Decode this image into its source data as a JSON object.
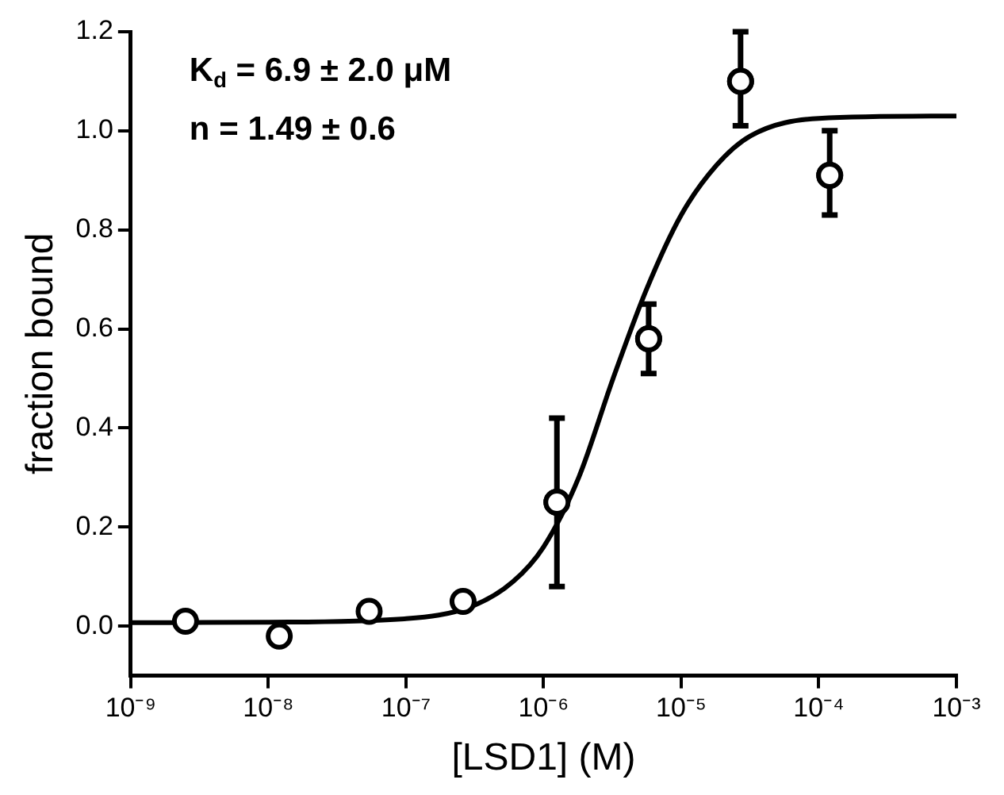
{
  "chart_data": {
    "type": "scatter",
    "xlabel": "[LSD1] (M)",
    "ylabel": "fraction bound",
    "log": "x",
    "grid": false,
    "legend": false,
    "annotations": [
      "K$_{d}$ = 6.9 ± 2.0 μM",
      "n = 1.49 ± 0.6"
    ],
    "xlim": [
      1e-09,
      0.001
    ],
    "xticks": [
      {
        "value": 1e-09,
        "label": "10⁻⁹"
      },
      {
        "value": 1e-08,
        "label": "10⁻⁸"
      },
      {
        "value": 1e-07,
        "label": "10⁻⁷"
      },
      {
        "value": 1e-06,
        "label": "10⁻⁶"
      },
      {
        "value": 1e-05,
        "label": "10⁻⁵"
      },
      {
        "value": 0.0001,
        "label": "10⁻⁴"
      },
      {
        "value": 0.001,
        "label": "10⁻³"
      }
    ],
    "ylim": [
      -0.1,
      1.2
    ],
    "yticks": [
      {
        "value": 0,
        "label": "0.0"
      },
      {
        "value": 0.2,
        "label": "0.2"
      },
      {
        "value": 0.4,
        "label": "0.4"
      },
      {
        "value": 0.6,
        "label": "0.6"
      },
      {
        "value": 0.8,
        "label": "0.8"
      },
      {
        "value": 1,
        "label": "1.0"
      },
      {
        "value": 1.2,
        "label": "1.2"
      }
    ],
    "series": [
      {
        "marker": "circle",
        "color": "#000000",
        "x": [
          2.5e-09,
          1.2e-08,
          5.4e-08,
          2.6e-07,
          1.25e-06,
          5.8e-06,
          2.7e-05,
          0.00012
        ],
        "values": [
          0.01,
          -0.02,
          0.03,
          0.05,
          0.25,
          0.58,
          1.1,
          0.91
        ],
        "errors": [
          null,
          null,
          null,
          null,
          [
            0.08,
            0.42
          ],
          [
            0.51,
            0.65
          ],
          [
            1.01,
            1.2
          ],
          [
            0.83,
            1.0
          ]
        ]
      },
      {
        "type": "line",
        "marker": "none",
        "color": "#000000",
        "x": [
          1e-09,
          1e-08,
          1e-07,
          3e-07,
          6e-07,
          1e-06,
          1.8e-06,
          3.2e-06,
          5.6e-06,
          1e-05,
          1.8e-05,
          3.2e-05,
          0.0001,
          0.001
        ],
        "values": [
          0.007,
          0.008,
          0.015,
          0.04,
          0.09,
          0.16,
          0.3,
          0.5,
          0.68,
          0.83,
          0.93,
          0.99,
          1.025,
          1.03
        ]
      }
    ]
  }
}
